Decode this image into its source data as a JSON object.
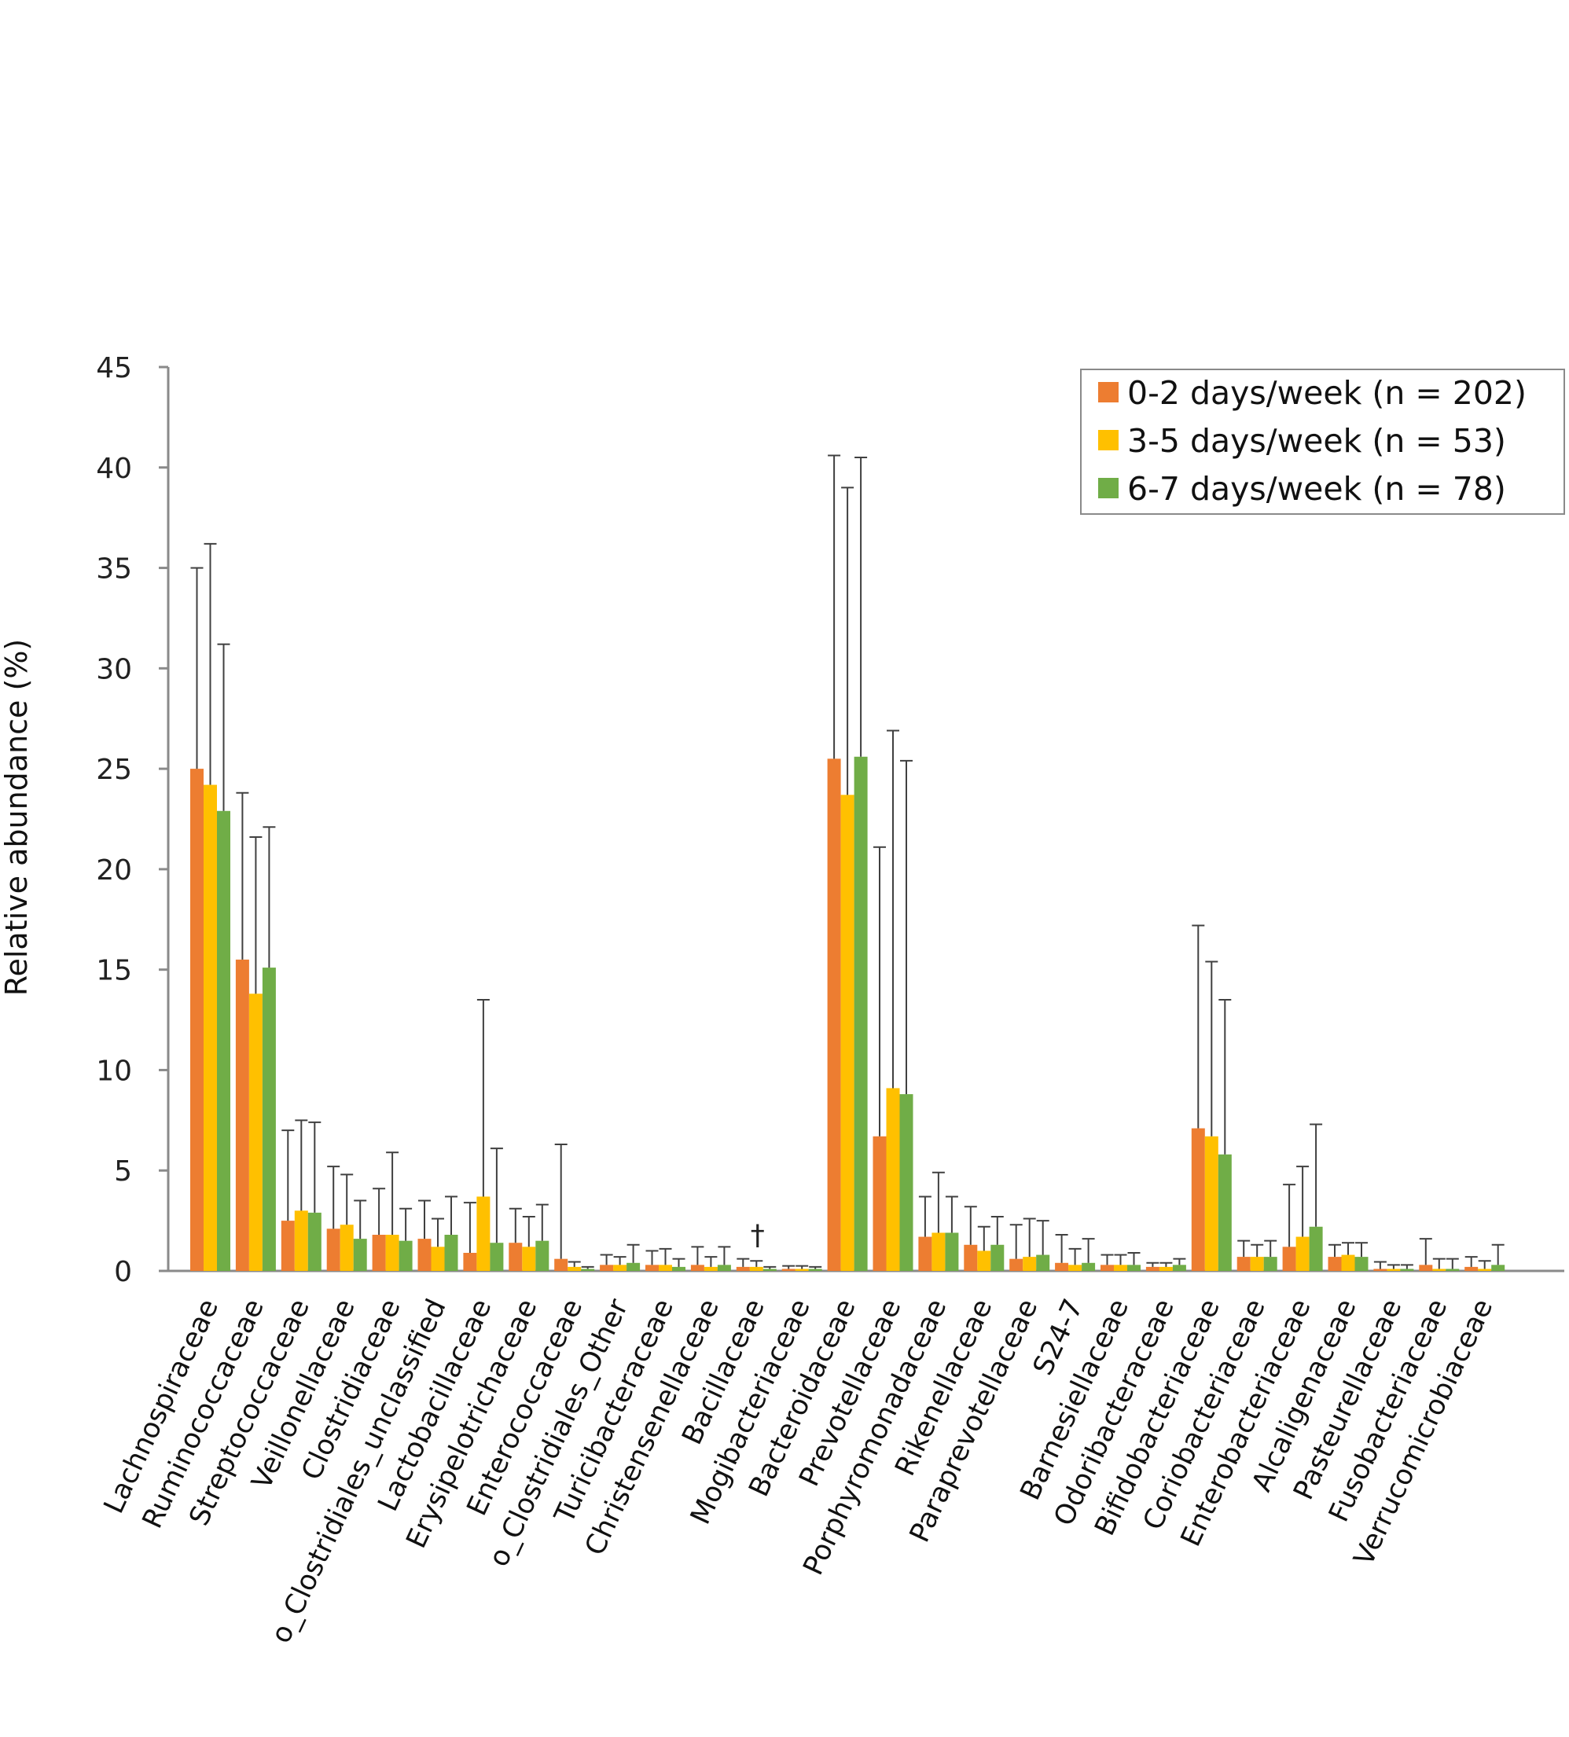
{
  "chart_data": {
    "type": "bar",
    "title": "",
    "xlabel": "",
    "ylabel": "Relative abundance (%)",
    "ylim": [
      0,
      45
    ],
    "yticks": [
      0,
      5,
      10,
      15,
      20,
      25,
      30,
      35,
      40,
      45
    ],
    "grid": false,
    "legend_position": "top-right",
    "categories": [
      "Lachnospiraceae",
      "Ruminococcaceae",
      "Streptococcaceae",
      "Veillonellaceae",
      "Clostridiaceae",
      "o_Clostridiales_unclassified",
      "Lactobacillaceae",
      "Erysipelotrichaceae",
      "Enterococcaceae",
      "o_Clostridiales_Other",
      "Turicibacteraceae",
      "Christensenellaceae",
      "Bacillaceae",
      "Mogibacteriaceae",
      "Bacteroidaceae",
      "Prevotellaceae",
      "Porphyromonadaceae",
      "Rikenellaceae",
      "Paraprevotellaceae",
      "S24-7",
      "Barnesiellaceae",
      "Odoribacteraceae",
      "Bifidobacteriaceae",
      "Coriobacteriaceae",
      "Enterobacteriaceae",
      "Alcaligenaceae",
      "Pasteurellaceae",
      "Fusobacteriaceae",
      "Verrucomicrobiaceae"
    ],
    "series": [
      {
        "name": "0-2 days/week (n = 202)",
        "color": "#ed7d31",
        "values": [
          25.0,
          15.5,
          2.5,
          2.1,
          1.8,
          1.6,
          0.9,
          1.4,
          0.6,
          0.3,
          0.3,
          0.3,
          0.2,
          0.1,
          25.5,
          6.7,
          1.7,
          1.3,
          0.6,
          0.4,
          0.3,
          0.2,
          7.1,
          0.7,
          1.2,
          0.7,
          0.1,
          0.3,
          0.2
        ],
        "errors": [
          10.0,
          8.3,
          4.5,
          3.1,
          2.3,
          1.9,
          2.5,
          1.7,
          5.7,
          0.5,
          0.7,
          0.9,
          0.4,
          0.15,
          15.1,
          14.4,
          2.0,
          1.9,
          1.7,
          1.4,
          0.5,
          0.2,
          10.1,
          0.8,
          3.1,
          0.6,
          0.35,
          1.3,
          0.5
        ]
      },
      {
        "name": "3-5 days/week (n = 53)",
        "color": "#ffc000",
        "values": [
          24.2,
          13.8,
          3.0,
          2.3,
          1.8,
          1.2,
          3.7,
          1.2,
          0.2,
          0.3,
          0.3,
          0.2,
          0.2,
          0.1,
          23.7,
          9.1,
          1.9,
          1.0,
          0.7,
          0.3,
          0.3,
          0.2,
          6.7,
          0.7,
          1.7,
          0.8,
          0.1,
          0.1,
          0.1
        ],
        "errors": [
          12.0,
          7.8,
          4.5,
          2.5,
          4.1,
          1.4,
          9.8,
          1.5,
          0.25,
          0.4,
          0.8,
          0.5,
          0.3,
          0.15,
          15.3,
          17.8,
          3.0,
          1.2,
          1.9,
          0.8,
          0.5,
          0.2,
          8.7,
          0.6,
          3.5,
          0.6,
          0.2,
          0.5,
          0.4
        ]
      },
      {
        "name": "6-7 days/week (n = 78)",
        "color": "#70ad47",
        "values": [
          22.9,
          15.1,
          2.9,
          1.6,
          1.5,
          1.8,
          1.4,
          1.5,
          0.1,
          0.4,
          0.2,
          0.3,
          0.1,
          0.1,
          25.6,
          8.8,
          1.9,
          1.3,
          0.8,
          0.4,
          0.3,
          0.3,
          5.8,
          0.7,
          2.2,
          0.7,
          0.1,
          0.1,
          0.3
        ],
        "errors": [
          8.3,
          7.0,
          4.5,
          1.9,
          1.6,
          1.9,
          4.7,
          1.8,
          0.1,
          0.9,
          0.4,
          0.9,
          0.1,
          0.1,
          14.9,
          16.6,
          1.8,
          1.4,
          1.7,
          1.2,
          0.6,
          0.3,
          7.7,
          0.8,
          5.1,
          0.7,
          0.2,
          0.5,
          1.0
        ]
      }
    ],
    "annotations": [
      {
        "category": "Bacillaceae",
        "text": "†"
      }
    ]
  }
}
